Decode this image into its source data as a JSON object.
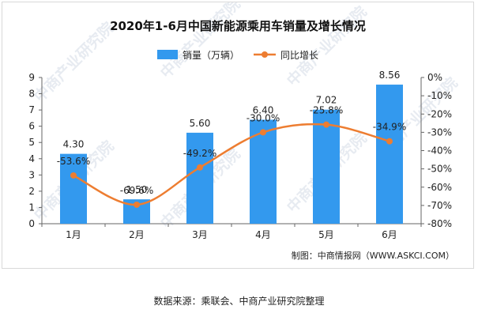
{
  "source_note": "数据来源：乘联会、中商产业研究院整理",
  "chart_data": {
    "type": "bar+line",
    "title": "2020年1-6月中国新能源乘用车销量及增长情况",
    "categories": [
      "1月",
      "2月",
      "3月",
      "4月",
      "5月",
      "6月"
    ],
    "series": [
      {
        "name": "销量（万辆）",
        "type": "bar",
        "axis": "left",
        "values": [
          4.3,
          1.5,
          5.6,
          6.4,
          7.02,
          8.56
        ],
        "labels": [
          "4.30",
          "1.50",
          "5.60",
          "6.40",
          "7.02",
          "8.56"
        ],
        "color": "#3399ee"
      },
      {
        "name": "同比增长",
        "type": "line",
        "axis": "right",
        "values": [
          -53.6,
          -69.6,
          -49.2,
          -30.0,
          -25.8,
          -34.9
        ],
        "labels": [
          "-53.6%",
          "-69.6%",
          "-49.2%",
          "-30.0%",
          "-25.8%",
          "-34.9%"
        ],
        "color": "#ed7d31"
      }
    ],
    "y_left": {
      "min": 0,
      "max": 9,
      "ticks": [
        "0",
        "1",
        "2",
        "3",
        "4",
        "5",
        "6",
        "7",
        "8",
        "9"
      ]
    },
    "y_right": {
      "min": -80,
      "max": 0,
      "ticks": [
        "0%",
        "-10%",
        "-20%",
        "-30%",
        "-40%",
        "-50%",
        "-60%",
        "-70%",
        "-80%"
      ]
    },
    "legend_position": "top-center",
    "grid": false,
    "credit": "制图：中商情报网（WWW.ASKCI.COM）",
    "watermark": "中商产业研究院"
  }
}
